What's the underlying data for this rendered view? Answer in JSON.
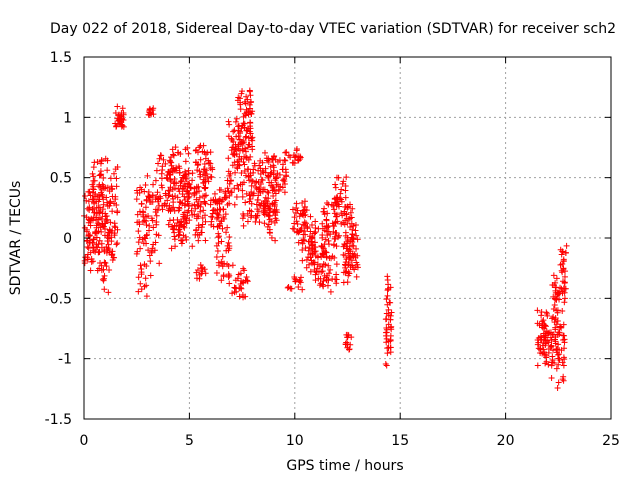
{
  "chart_data": {
    "type": "scatter",
    "title": "Day 022 of 2018, Sidereal Day-to-day VTEC variation (SDTVAR) for receiver sch2",
    "xlabel": "GPS time / hours",
    "ylabel": "SDTVAR / TECUs",
    "xlim": [
      0,
      25
    ],
    "ylim": [
      -1.5,
      1.5
    ],
    "xticks": [
      0,
      5,
      10,
      15,
      20,
      25
    ],
    "yticks": [
      -1.5,
      -1,
      -0.5,
      0,
      0.5,
      1,
      1.5
    ],
    "xtick_labels": [
      "0",
      "5",
      "10",
      "15",
      "20",
      "25"
    ],
    "ytick_labels": [
      "-1.5",
      "-1",
      "-0.5",
      "0",
      "0.5",
      "1",
      "1.5"
    ],
    "grid": true,
    "marker": "plus",
    "series": [
      {
        "name": "SDTVAR",
        "color": "#ff0000",
        "clusters": [
          {
            "x": [
              0.0,
              0.5
            ],
            "y": [
              -0.3,
              0.5
            ],
            "n": 60
          },
          {
            "x": [
              0.4,
              1.1
            ],
            "y": [
              0.0,
              0.72
            ],
            "n": 70
          },
          {
            "x": [
              0.5,
              1.2
            ],
            "y": [
              -0.5,
              0.25
            ],
            "n": 50
          },
          {
            "x": [
              1.1,
              1.6
            ],
            "y": [
              -0.3,
              0.65
            ],
            "n": 55
          },
          {
            "x": [
              1.4,
              1.9
            ],
            "y": [
              0.9,
              1.1
            ],
            "n": 30
          },
          {
            "x": [
              2.5,
              3.0
            ],
            "y": [
              -0.6,
              0.6
            ],
            "n": 55
          },
          {
            "x": [
              3.0,
              3.3
            ],
            "y": [
              1.0,
              1.1
            ],
            "n": 12
          },
          {
            "x": [
              3.0,
              3.6
            ],
            "y": [
              -0.35,
              0.65
            ],
            "n": 45
          },
          {
            "x": [
              3.5,
              4.1
            ],
            "y": [
              0.2,
              0.7
            ],
            "n": 35
          },
          {
            "x": [
              4.0,
              5.0
            ],
            "y": [
              -0.1,
              0.85
            ],
            "n": 110
          },
          {
            "x": [
              4.5,
              5.8
            ],
            "y": [
              -0.1,
              0.65
            ],
            "n": 100
          },
          {
            "x": [
              5.3,
              5.8
            ],
            "y": [
              -0.35,
              -0.2
            ],
            "n": 12
          },
          {
            "x": [
              5.3,
              6.1
            ],
            "y": [
              0.4,
              0.85
            ],
            "n": 40
          },
          {
            "x": [
              6.0,
              6.8
            ],
            "y": [
              0.0,
              0.45
            ],
            "n": 55
          },
          {
            "x": [
              6.3,
              6.9
            ],
            "y": [
              -0.4,
              0.05
            ],
            "n": 30
          },
          {
            "x": [
              6.8,
              7.5
            ],
            "y": [
              0.2,
              1.0
            ],
            "n": 60
          },
          {
            "x": [
              7.0,
              7.8
            ],
            "y": [
              -0.55,
              -0.2
            ],
            "n": 30
          },
          {
            "x": [
              7.3,
              8.0
            ],
            "y": [
              0.55,
              1.28
            ],
            "n": 80
          },
          {
            "x": [
              7.5,
              8.4
            ],
            "y": [
              0.0,
              0.7
            ],
            "n": 60
          },
          {
            "x": [
              8.3,
              9.1
            ],
            "y": [
              0.1,
              0.75
            ],
            "n": 60
          },
          {
            "x": [
              8.5,
              9.2
            ],
            "y": [
              -0.05,
              0.4
            ],
            "n": 35
          },
          {
            "x": [
              8.7,
              9.6
            ],
            "y": [
              0.35,
              0.7
            ],
            "n": 40
          },
          {
            "x": [
              9.5,
              10.3
            ],
            "y": [
              0.6,
              0.75
            ],
            "n": 20
          },
          {
            "x": [
              9.6,
              10.4
            ],
            "y": [
              -0.45,
              -0.3
            ],
            "n": 15
          },
          {
            "x": [
              9.9,
              10.6
            ],
            "y": [
              -0.05,
              0.35
            ],
            "n": 35
          },
          {
            "x": [
              10.3,
              11.0
            ],
            "y": [
              -0.3,
              0.3
            ],
            "n": 50
          },
          {
            "x": [
              10.8,
              11.6
            ],
            "y": [
              -0.45,
              0.15
            ],
            "n": 55
          },
          {
            "x": [
              11.3,
              12.0
            ],
            "y": [
              -0.5,
              0.35
            ],
            "n": 60
          },
          {
            "x": [
              11.9,
              12.5
            ],
            "y": [
              -0.1,
              0.6
            ],
            "n": 45
          },
          {
            "x": [
              12.3,
              12.8
            ],
            "y": [
              -0.45,
              0.45
            ],
            "n": 50
          },
          {
            "x": [
              12.4,
              12.7
            ],
            "y": [
              -0.95,
              -0.75
            ],
            "n": 14
          },
          {
            "x": [
              12.5,
              13.0
            ],
            "y": [
              -0.4,
              0.15
            ],
            "n": 35
          },
          {
            "x": [
              14.3,
              14.6
            ],
            "y": [
              -1.15,
              -0.2
            ],
            "n": 45
          },
          {
            "x": [
              21.5,
              22.0
            ],
            "y": [
              -1.1,
              -0.5
            ],
            "n": 40
          },
          {
            "x": [
              21.8,
              22.4
            ],
            "y": [
              -1.2,
              -0.6
            ],
            "n": 45
          },
          {
            "x": [
              22.2,
              22.6
            ],
            "y": [
              -0.9,
              -0.2
            ],
            "n": 35
          },
          {
            "x": [
              22.4,
              22.8
            ],
            "y": [
              -1.32,
              -0.5
            ],
            "n": 35
          },
          {
            "x": [
              22.6,
              22.9
            ],
            "y": [
              -0.6,
              0.1
            ],
            "n": 30
          }
        ]
      }
    ]
  }
}
